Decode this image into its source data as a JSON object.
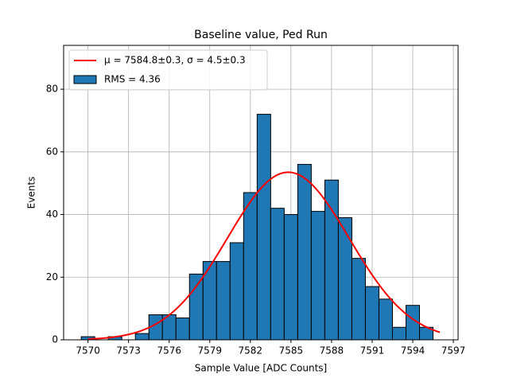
{
  "chart_data": {
    "type": "histogram",
    "title": "Baseline value, Ped Run",
    "x_label": "Sample Value [ADC Counts]",
    "y_label": "Events",
    "bins": [
      7569.5,
      7570.5,
      7571.5,
      7572.5,
      7573.5,
      7574.5,
      7575.5,
      7576.5,
      7577.5,
      7578.5,
      7579.5,
      7580.5,
      7581.5,
      7582.5,
      7583.5,
      7584.5,
      7585.5,
      7586.5,
      7587.5,
      7588.5,
      7589.5,
      7590.5,
      7591.5,
      7592.5,
      7593.5,
      7594.5,
      7595.5
    ],
    "counts": [
      1,
      0,
      1,
      0,
      2,
      8,
      8,
      7,
      21,
      25,
      25,
      31,
      47,
      72,
      42,
      40,
      56,
      41,
      51,
      39,
      26,
      17,
      13,
      4,
      11,
      4
    ],
    "name": "RMS = 4.36",
    "color": "#1f77b4",
    "edgecolor": "#000000",
    "fit": {
      "name": "μ = 7584.8±0.3, σ = 4.5±0.3",
      "color": "#ff0000",
      "amplitude": 53.5,
      "mean": 7584.8,
      "sigma": 4.5,
      "x_range": [
        7570,
        7596
      ]
    },
    "xlim": [
      7568.2,
      7597.35
    ],
    "ylim": [
      0,
      94
    ],
    "xticks": [
      7570,
      7573,
      7576,
      7579,
      7582,
      7585,
      7588,
      7591,
      7594,
      7597
    ],
    "yticks": [
      0,
      20,
      40,
      60,
      80
    ],
    "grid": true,
    "legend": "upper left"
  }
}
